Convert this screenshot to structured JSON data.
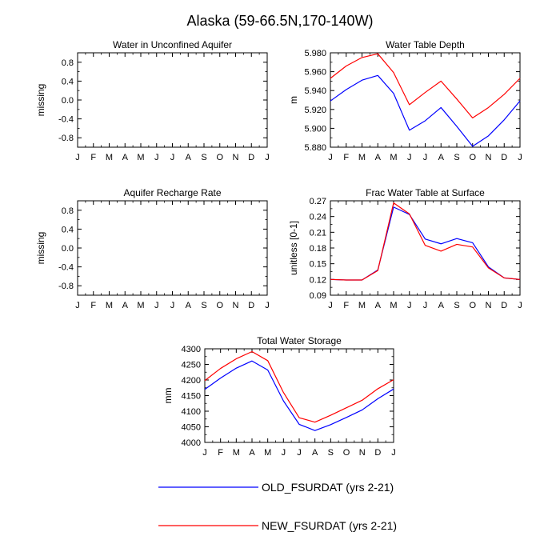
{
  "title": "Alaska (59-66.5N,170-140W)",
  "months": [
    "J",
    "F",
    "M",
    "A",
    "M",
    "J",
    "J",
    "A",
    "S",
    "O",
    "N",
    "D",
    "J"
  ],
  "legend": [
    {
      "label": "OLD_FSURDAT (yrs 2-21)",
      "color": "#0000ff"
    },
    {
      "label": "NEW_FSURDAT (yrs 2-21)",
      "color": "#ff0000"
    }
  ],
  "chart_data": [
    {
      "type": "line",
      "title": "Water in Unconfined Aquifer",
      "xlabel": "",
      "ylabel": "missing",
      "ylim": [
        -1.0,
        1.0
      ],
      "yticks": [
        "0.8",
        "0.4",
        "0.0",
        "-0.4",
        "-0.8"
      ],
      "ytick_values": [
        0.8,
        0.4,
        0.0,
        -0.4,
        -0.8
      ],
      "series": []
    },
    {
      "type": "line",
      "title": "Water Table Depth",
      "xlabel": "",
      "ylabel": "m",
      "ylim": [
        5.88,
        5.98
      ],
      "yticks": [
        "5.980",
        "5.960",
        "5.940",
        "5.920",
        "5.900",
        "5.880"
      ],
      "ytick_values": [
        5.98,
        5.96,
        5.94,
        5.92,
        5.9,
        5.88
      ],
      "series": [
        {
          "name": "OLD_FSURDAT (yrs 2-21)",
          "color": "#0000ff",
          "values": [
            5.929,
            5.941,
            5.951,
            5.956,
            5.937,
            5.898,
            5.908,
            5.922,
            5.902,
            5.881,
            5.892,
            5.909,
            5.929
          ]
        },
        {
          "name": "NEW_FSURDAT (yrs 2-21)",
          "color": "#ff0000",
          "values": [
            5.953,
            5.966,
            5.975,
            5.979,
            5.959,
            5.925,
            5.938,
            5.95,
            5.931,
            5.911,
            5.922,
            5.936,
            5.953
          ]
        }
      ]
    },
    {
      "type": "line",
      "title": "Aquifer Recharge Rate",
      "xlabel": "",
      "ylabel": "missing",
      "ylim": [
        -1.0,
        1.0
      ],
      "yticks": [
        "0.8",
        "0.4",
        "0.0",
        "-0.4",
        "-0.8"
      ],
      "ytick_values": [
        0.8,
        0.4,
        0.0,
        -0.4,
        -0.8
      ],
      "series": []
    },
    {
      "type": "line",
      "title": "Frac Water Table at Surface",
      "xlabel": "",
      "ylabel": "unitless [0-1]",
      "ylim": [
        0.09,
        0.27
      ],
      "yticks": [
        "0.27",
        "0.24",
        "0.21",
        "0.18",
        "0.15",
        "0.12",
        "0.09"
      ],
      "ytick_values": [
        0.27,
        0.24,
        0.21,
        0.18,
        0.15,
        0.12,
        0.09
      ],
      "series": [
        {
          "name": "OLD_FSURDAT (yrs 2-21)",
          "color": "#0000ff",
          "values": [
            0.12,
            0.119,
            0.119,
            0.138,
            0.258,
            0.244,
            0.197,
            0.188,
            0.198,
            0.19,
            0.144,
            0.123,
            0.12
          ]
        },
        {
          "name": "NEW_FSURDAT (yrs 2-21)",
          "color": "#ff0000",
          "values": [
            0.12,
            0.119,
            0.119,
            0.137,
            0.266,
            0.245,
            0.185,
            0.174,
            0.187,
            0.182,
            0.142,
            0.123,
            0.12
          ]
        }
      ]
    },
    {
      "type": "line",
      "title": "Total Water Storage",
      "xlabel": "",
      "ylabel": "mm",
      "ylim": [
        4000,
        4300
      ],
      "yticks": [
        "4300",
        "4250",
        "4200",
        "4150",
        "4100",
        "4050",
        "4000"
      ],
      "ytick_values": [
        4300,
        4250,
        4200,
        4150,
        4100,
        4050,
        4000
      ],
      "series": [
        {
          "name": "OLD_FSURDAT (yrs 2-21)",
          "color": "#0000ff",
          "values": [
            4170,
            4206,
            4238,
            4261,
            4232,
            4133,
            4058,
            4038,
            4057,
            4080,
            4104,
            4140,
            4171
          ]
        },
        {
          "name": "NEW_FSURDAT (yrs 2-21)",
          "color": "#ff0000",
          "values": [
            4198,
            4237,
            4268,
            4291,
            4262,
            4160,
            4079,
            4065,
            4087,
            4111,
            4135,
            4172,
            4201
          ]
        }
      ]
    }
  ]
}
